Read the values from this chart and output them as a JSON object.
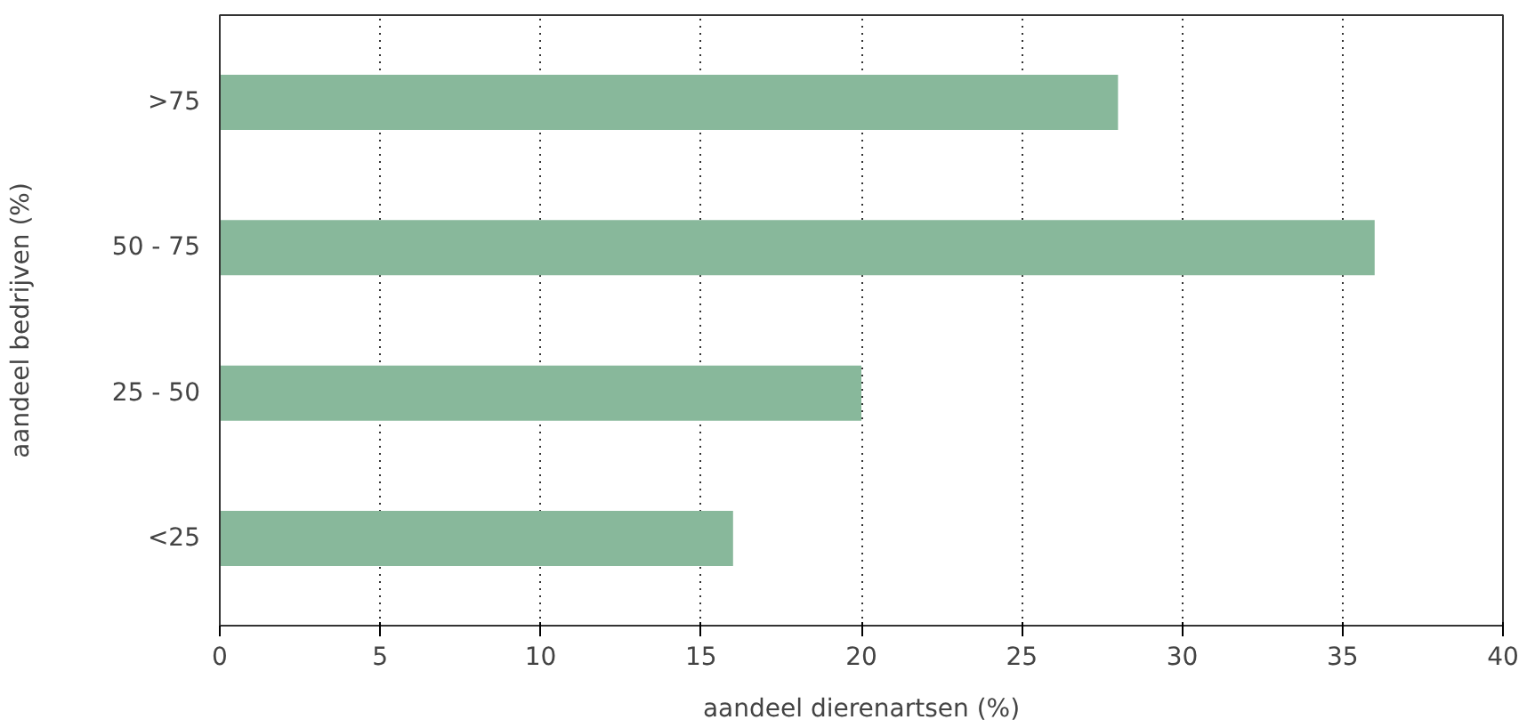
{
  "chart_data": {
    "type": "bar",
    "orientation": "horizontal",
    "xlabel": "aandeel dierenartsen (%)",
    "ylabel": "aandeel bedrijven (%)",
    "categories": [
      ">75",
      "50 - 75",
      "25 - 50",
      "<25"
    ],
    "values": [
      28,
      36,
      20,
      16
    ],
    "color": "#88b89b",
    "xlim": [
      0,
      40
    ],
    "xticks": [
      0,
      5,
      10,
      15,
      20,
      25,
      30,
      35,
      40
    ],
    "grid": "x"
  }
}
